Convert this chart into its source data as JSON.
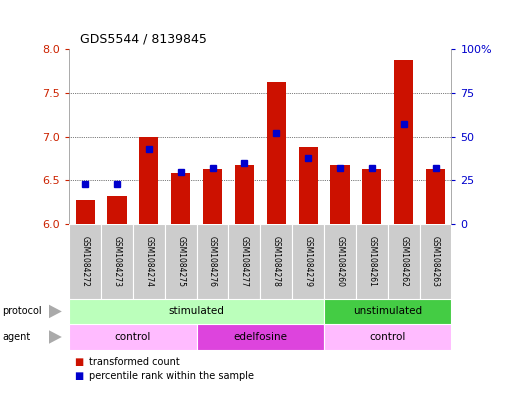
{
  "title": "GDS5544 / 8139845",
  "samples": [
    "GSM1084272",
    "GSM1084273",
    "GSM1084274",
    "GSM1084275",
    "GSM1084276",
    "GSM1084277",
    "GSM1084278",
    "GSM1084279",
    "GSM1084260",
    "GSM1084261",
    "GSM1084262",
    "GSM1084263"
  ],
  "transformed_count": [
    6.28,
    6.32,
    7.0,
    6.58,
    6.63,
    6.67,
    7.62,
    6.88,
    6.67,
    6.63,
    7.88,
    6.63
  ],
  "percentile_rank": [
    23,
    23,
    43,
    30,
    32,
    35,
    52,
    38,
    32,
    32,
    57,
    32
  ],
  "ylim_left": [
    6.0,
    8.0
  ],
  "ylim_right": [
    0,
    100
  ],
  "yticks_left": [
    6.0,
    6.5,
    7.0,
    7.5,
    8.0
  ],
  "yticks_right": [
    0,
    25,
    50,
    75,
    100
  ],
  "bar_color": "#cc1100",
  "dot_color": "#0000cc",
  "bar_bottom": 6.0,
  "protocol_groups": [
    {
      "label": "stimulated",
      "start": 0,
      "end": 8,
      "color": "#bbffbb"
    },
    {
      "label": "unstimulated",
      "start": 8,
      "end": 12,
      "color": "#44cc44"
    }
  ],
  "agent_groups": [
    {
      "label": "control",
      "start": 0,
      "end": 4,
      "color": "#ffbbff"
    },
    {
      "label": "edelfosine",
      "start": 4,
      "end": 8,
      "color": "#dd44dd"
    },
    {
      "label": "control",
      "start": 8,
      "end": 12,
      "color": "#ffbbff"
    }
  ],
  "bg_color": "#ffffff",
  "tick_label_color_left": "#cc2200",
  "tick_label_color_right": "#0000cc",
  "label_bg_color": "#cccccc",
  "label_bg_edge": "#999999"
}
